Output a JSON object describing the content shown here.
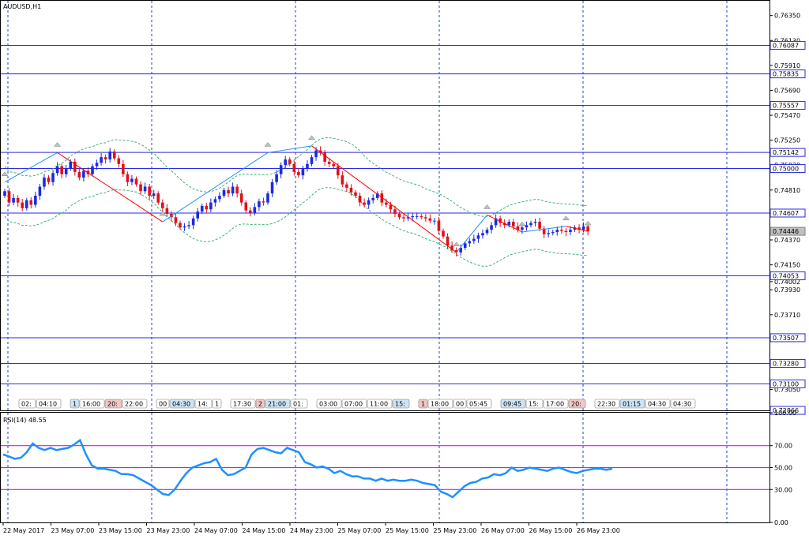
{
  "window_title": "AUDUSD,H1",
  "rsi_title": "RSI(14) 48.55",
  "colors": {
    "bull": "#1b2ae0",
    "bear": "#e0101a",
    "grid": "#2040d0",
    "level": "#2a2ae0",
    "rsi": "#1e90ff",
    "rsi_level": "#ff00ff",
    "envelope": "#3cb371",
    "zigzag_up": "#1e90ff",
    "zigzag_down": "#ff0000"
  },
  "price_axis": {
    "ticks": [
      "0.76350",
      "0.76130",
      "0.75910",
      "0.75690",
      "0.75470",
      "0.75250",
      "0.75030",
      "0.74810",
      "0.74590",
      "0.74370",
      "0.74150",
      "0.74002",
      "0.73930",
      "0.73710",
      "0.73490",
      "0.73280",
      "0.73050"
    ],
    "level_labels": [
      "0.76087",
      "0.75835",
      "0.75557",
      "0.75142",
      "0.75000",
      "0.74607",
      "0.74446",
      "0.74053",
      "0.73507",
      "0.73280",
      "0.73100",
      "0.72866"
    ],
    "current_price": "0.74446"
  },
  "rsi_axis": {
    "ticks": [
      "100.00",
      "70.00",
      "50.00",
      "30.00",
      "0.00"
    ]
  },
  "time_axis": [
    "22 May 2017",
    "23 May 07:00",
    "23 May 15:00",
    "23 May 23:00",
    "24 May 07:00",
    "24 May 15:00",
    "24 May 23:00",
    "25 May 07:00",
    "25 May 15:00",
    "25 May 23:00",
    "26 May 07:00",
    "26 May 15:00",
    "26 May 23:00"
  ],
  "event_tags": [
    "02:",
    "04:10",
    "1",
    "16:00",
    "20:",
    "22:00",
    "00",
    "04:30",
    "14:",
    "1",
    "17:30",
    "2",
    "21:00",
    "01:",
    "03:00",
    "07:00",
    "11:00",
    "15:",
    "1",
    "18:00",
    "00",
    "05:45",
    "09:45",
    "15:",
    "17:00",
    "20:",
    "22:30",
    "01:15",
    "04:30",
    "04:30"
  ],
  "chart_data": {
    "type": "candlestick",
    "ylim": [
      0.72866,
      0.7648
    ],
    "rsi_ylim": [
      0,
      100
    ],
    "rsi_levels": [
      70,
      50,
      30
    ],
    "horizontal_levels": [
      0.76087,
      0.75835,
      0.75557,
      0.75142,
      0.75,
      0.74607,
      0.74053,
      0.73507,
      0.7328,
      0.731
    ],
    "closes": [
      0.748,
      0.747,
      0.7474,
      0.747,
      0.7465,
      0.7472,
      0.7468,
      0.7476,
      0.7484,
      0.7492,
      0.7488,
      0.7496,
      0.7502,
      0.7495,
      0.75,
      0.7506,
      0.7497,
      0.7492,
      0.7498,
      0.7495,
      0.7502,
      0.7505,
      0.751,
      0.7508,
      0.7515,
      0.7509,
      0.7504,
      0.7495,
      0.7488,
      0.7491,
      0.7486,
      0.748,
      0.7484,
      0.7476,
      0.7478,
      0.747,
      0.7465,
      0.746,
      0.7457,
      0.7452,
      0.7448,
      0.7449,
      0.745,
      0.7456,
      0.7462,
      0.7467,
      0.7464,
      0.747,
      0.7473,
      0.7476,
      0.7481,
      0.7478,
      0.7484,
      0.7478,
      0.747,
      0.7463,
      0.7461,
      0.7466,
      0.7471,
      0.747,
      0.7478,
      0.7488,
      0.7495,
      0.7503,
      0.7508,
      0.7504,
      0.7497,
      0.7494,
      0.75,
      0.7504,
      0.751,
      0.7516,
      0.7514,
      0.7506,
      0.7504,
      0.7502,
      0.7494,
      0.7486,
      0.7483,
      0.7479,
      0.7476,
      0.747,
      0.7468,
      0.7472,
      0.7474,
      0.7478,
      0.747,
      0.7468,
      0.7464,
      0.746,
      0.7457,
      0.7456,
      0.7457,
      0.7458,
      0.7458,
      0.7457,
      0.7456,
      0.7454,
      0.7454,
      0.7445,
      0.744,
      0.7432,
      0.7428,
      0.7426,
      0.743,
      0.7434,
      0.7436,
      0.7438,
      0.7441,
      0.7443,
      0.7446,
      0.745,
      0.7456,
      0.7452,
      0.745,
      0.7453,
      0.7449,
      0.7446,
      0.7448,
      0.745,
      0.7452,
      0.7453,
      0.7447,
      0.7442,
      0.7443,
      0.7444,
      0.7446,
      0.7445,
      0.7444,
      0.7446,
      0.7448,
      0.7446,
      0.7449,
      0.74446
    ],
    "rsi": [
      62,
      60,
      58,
      59,
      64,
      72,
      68,
      66,
      68,
      66,
      67,
      68,
      71,
      75,
      62,
      52,
      49,
      49,
      48,
      47,
      44,
      44,
      43,
      40,
      37,
      34,
      30,
      26,
      25,
      30,
      38,
      45,
      50,
      52,
      54,
      55,
      58,
      48,
      43,
      44,
      47,
      50,
      62,
      67,
      68,
      66,
      64,
      63,
      68,
      66,
      64,
      55,
      53,
      50,
      51,
      49,
      45,
      47,
      44,
      42,
      42,
      40,
      40,
      38,
      40,
      38,
      39,
      38,
      38,
      39,
      38,
      36,
      35,
      34,
      28,
      26,
      23,
      28,
      33,
      36,
      37,
      40,
      41,
      44,
      43,
      45,
      50,
      47,
      48,
      50,
      49,
      48,
      47,
      49,
      50,
      48,
      46,
      45,
      47,
      48,
      49,
      49,
      48,
      49
    ],
    "zigzag": [
      [
        0,
        0.7488
      ],
      [
        12,
        0.7514
      ],
      [
        36,
        0.7453
      ],
      [
        60,
        0.7514
      ],
      [
        70,
        0.752
      ],
      [
        103,
        0.7426
      ],
      [
        110,
        0.7459
      ],
      [
        118,
        0.7444
      ],
      [
        128,
        0.7449
      ],
      [
        133,
        0.74446
      ]
    ]
  }
}
